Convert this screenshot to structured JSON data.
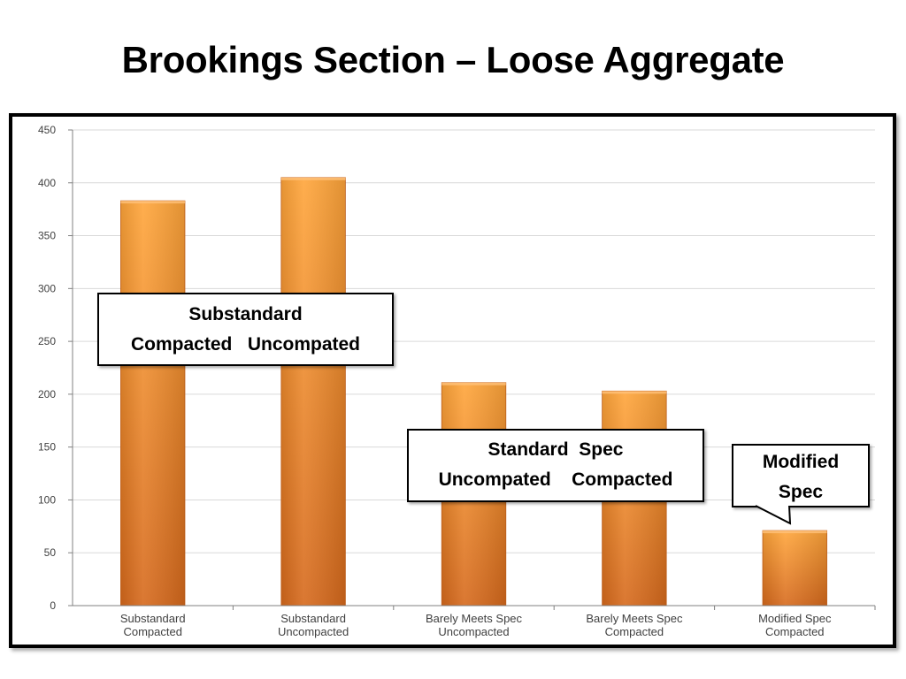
{
  "slide": {
    "title": "Brookings Section – Loose Aggregate"
  },
  "colors": {
    "bar_top": "#FFA53A",
    "bar_bottom": "#D6691C",
    "bar_edge": "#C8641E",
    "gridline": "#D9D9D9",
    "axis": "#808080"
  },
  "callouts": [
    {
      "line1": "Substandard",
      "line2": "Compacted   Uncompated"
    },
    {
      "line1": "Standard  Spec",
      "line2": "Uncompated    Compacted"
    },
    {
      "line1": "Modified",
      "line2": "Spec"
    }
  ],
  "chart_data": {
    "type": "bar",
    "categories": [
      [
        "Substandard",
        "Compacted"
      ],
      [
        "Substandard",
        "Uncompacted"
      ],
      [
        "Barely Meets Spec",
        "Uncompacted"
      ],
      [
        "Barely Meets Spec",
        "Compacted"
      ],
      [
        "Modified Spec",
        "Compacted"
      ]
    ],
    "values": [
      383,
      405,
      211,
      203,
      71
    ],
    "ylim": [
      0,
      450
    ],
    "yticks": [
      0,
      50,
      100,
      150,
      200,
      250,
      300,
      350,
      400,
      450
    ],
    "grid": true,
    "legend": "none",
    "title": "",
    "xlabel": "",
    "ylabel": ""
  }
}
